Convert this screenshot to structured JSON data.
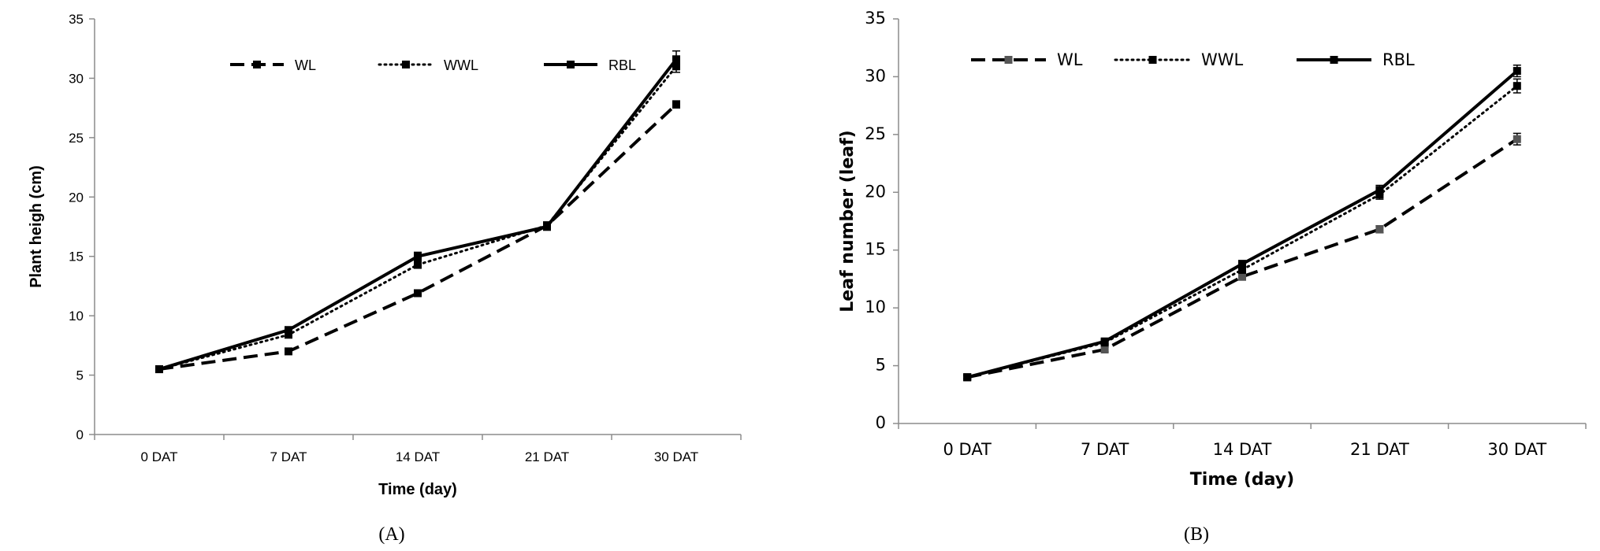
{
  "chart_data": [
    {
      "type": "line",
      "caption": "(A)",
      "title": "",
      "xlabel": "Time (day)",
      "ylabel": "Plant heigh (cm)",
      "categories": [
        "0 DAT",
        "7 DAT",
        "14 DAT",
        "21 DAT",
        "30 DAT"
      ],
      "ylim": [
        0,
        35
      ],
      "yticks": [
        0,
        5,
        10,
        15,
        20,
        25,
        30,
        35
      ],
      "legend_position": "top",
      "series": [
        {
          "name": "WL",
          "style": "dashed",
          "values": [
            5.5,
            7.0,
            11.9,
            17.6,
            27.8
          ],
          "errors": [
            0.15,
            0.2,
            0.25,
            0.3,
            0.3
          ]
        },
        {
          "name": "WWL",
          "style": "dotted",
          "values": [
            5.5,
            8.4,
            14.3,
            17.6,
            31.0
          ],
          "errors": [
            0.15,
            0.2,
            0.3,
            0.3,
            0.5
          ]
        },
        {
          "name": "RBL",
          "style": "solid",
          "values": [
            5.5,
            8.8,
            15.0,
            17.5,
            31.6
          ],
          "errors": [
            0.15,
            0.2,
            0.35,
            0.3,
            0.7
          ]
        }
      ]
    },
    {
      "type": "line",
      "caption": "(B)",
      "title": "",
      "xlabel": "Time (day)",
      "ylabel": "Leaf number (leaf)",
      "categories": [
        "0 DAT",
        "7 DAT",
        "14 DAT",
        "21 DAT",
        "30 DAT"
      ],
      "ylim": [
        0,
        35
      ],
      "yticks": [
        0,
        5,
        10,
        15,
        20,
        25,
        30,
        35
      ],
      "legend_position": "top-left",
      "series": [
        {
          "name": "WL",
          "style": "dashed",
          "values": [
            4.0,
            6.4,
            12.7,
            16.8,
            24.6
          ],
          "errors": [
            0.15,
            0.2,
            0.3,
            0.3,
            0.5
          ]
        },
        {
          "name": "WWL",
          "style": "dotted",
          "values": [
            4.0,
            7.0,
            13.3,
            19.8,
            29.2
          ],
          "errors": [
            0.15,
            0.2,
            0.3,
            0.4,
            0.6
          ]
        },
        {
          "name": "RBL",
          "style": "solid",
          "values": [
            4.0,
            7.1,
            13.8,
            20.2,
            30.5
          ],
          "errors": [
            0.15,
            0.2,
            0.3,
            0.4,
            0.5
          ]
        }
      ]
    }
  ]
}
